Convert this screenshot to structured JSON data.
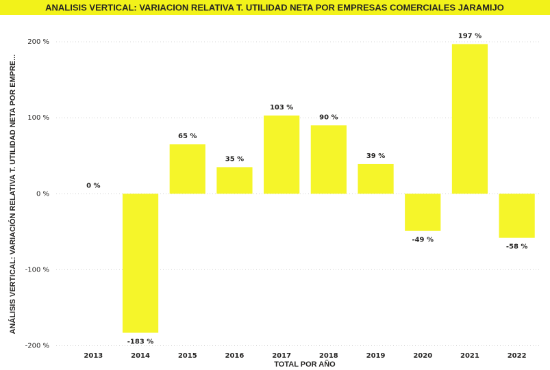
{
  "chart_data": {
    "type": "bar",
    "title": "ANALISIS VERTICAL: VARIACION RELATIVA T. UTILIDAD NETA POR EMPRESAS COMERCIALES JARAMIJO",
    "y_axis_label": "ANÁLISIS VERTICAL: VARIACIÓN RELATIVA T. UTILIDAD NETA POR EMPRE...",
    "x_axis_label": "TOTAL POR AÑO",
    "categories": [
      "2013",
      "2014",
      "2015",
      "2016",
      "2017",
      "2018",
      "2019",
      "2020",
      "2021",
      "2022"
    ],
    "values": [
      0,
      -183,
      65,
      35,
      103,
      90,
      39,
      -49,
      197,
      -58
    ],
    "value_labels": [
      "0 %",
      "-183 %",
      "65 %",
      "35 %",
      "103 %",
      "90 %",
      "39 %",
      "-49 %",
      "197 %",
      "-58 %"
    ],
    "color": "#f5f52a",
    "ylim": [
      -205,
      210
    ],
    "yticks": [
      {
        "value": -200,
        "label": "-200 %"
      },
      {
        "value": -100,
        "label": "-100 %"
      },
      {
        "value": 0,
        "label": "0 %"
      },
      {
        "value": 100,
        "label": "100 %"
      },
      {
        "value": 200,
        "label": "200 %"
      }
    ],
    "grid": true
  }
}
